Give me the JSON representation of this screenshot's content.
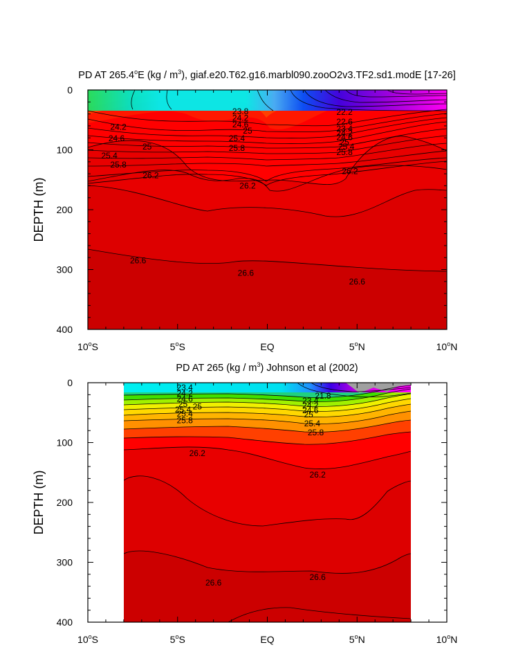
{
  "chart_data": [
    {
      "type": "heatmap",
      "title_prefix": "PD AT 265.4",
      "title_deg": "o",
      "title_mid": "E (kg / m",
      "title_sup": "3",
      "title_suffix": "), giaf.e20.T62.g16.marbl090.zooO2v3.TF2.sd1.modE [17-26]",
      "ylabel": "DEPTH (m)",
      "xlim": [
        -10,
        10
      ],
      "ylim": [
        0,
        400
      ],
      "x_ticks": [
        {
          "value": -10,
          "num": "10",
          "hemi": "S"
        },
        {
          "value": -5,
          "num": "5",
          "hemi": "S"
        },
        {
          "value": 0,
          "num": "EQ",
          "hemi": ""
        },
        {
          "value": 5,
          "num": "5",
          "hemi": "N"
        },
        {
          "value": 10,
          "num": "10",
          "hemi": "N"
        }
      ],
      "y_ticks": [
        "0",
        "100",
        "200",
        "300",
        "400"
      ],
      "contour_labels": [
        {
          "text": "24.2",
          "x": -8.3,
          "y": 62
        },
        {
          "text": "24.6",
          "x": -8.4,
          "y": 81
        },
        {
          "text": "25",
          "x": -6.7,
          "y": 95
        },
        {
          "text": "25.4",
          "x": -8.8,
          "y": 110
        },
        {
          "text": "25.8",
          "x": -8.3,
          "y": 125
        },
        {
          "text": "26.2",
          "x": -6.5,
          "y": 143
        },
        {
          "text": "23.8",
          "x": -1.5,
          "y": 36
        },
        {
          "text": "24.2",
          "x": -1.5,
          "y": 47
        },
        {
          "text": "24.6",
          "x": -1.5,
          "y": 58
        },
        {
          "text": "25",
          "x": -1.1,
          "y": 68
        },
        {
          "text": "25.4",
          "x": -1.7,
          "y": 81
        },
        {
          "text": "25.8",
          "x": -1.7,
          "y": 97
        },
        {
          "text": "26.2",
          "x": -1.1,
          "y": 160
        },
        {
          "text": "22.2",
          "x": 4.3,
          "y": 37
        },
        {
          "text": "22.6",
          "x": 4.3,
          "y": 53
        },
        {
          "text": "23.4",
          "x": 4.3,
          "y": 65
        },
        {
          "text": "24.2",
          "x": 4.3,
          "y": 72
        },
        {
          "text": "24.6",
          "x": 4.3,
          "y": 79
        },
        {
          "text": "25",
          "x": 4.3,
          "y": 87
        },
        {
          "text": "25.4",
          "x": 4.4,
          "y": 95
        },
        {
          "text": "25.8",
          "x": 4.3,
          "y": 104
        },
        {
          "text": "26.2",
          "x": 4.6,
          "y": 136
        },
        {
          "text": "26.6",
          "x": -7.2,
          "y": 285
        },
        {
          "text": "26.6",
          "x": -1.2,
          "y": 306
        },
        {
          "text": "26.6",
          "x": 5.0,
          "y": 320
        }
      ]
    },
    {
      "type": "heatmap",
      "title_prefix": "PD AT 265 (kg / m",
      "title_deg": "",
      "title_mid": "",
      "title_sup": "3",
      "title_suffix": ") Johnson et al (2002)",
      "ylabel": "DEPTH (m)",
      "xlim": [
        -10,
        10
      ],
      "ylim": [
        0,
        400
      ],
      "data_xlim": [
        -8,
        8
      ],
      "x_ticks": [
        {
          "value": -10,
          "num": "10",
          "hemi": "S"
        },
        {
          "value": -5,
          "num": "5",
          "hemi": "S"
        },
        {
          "value": 0,
          "num": "EQ",
          "hemi": ""
        },
        {
          "value": 5,
          "num": "5",
          "hemi": "N"
        },
        {
          "value": 10,
          "num": "10",
          "hemi": "N"
        }
      ],
      "y_ticks": [
        "0",
        "100",
        "200",
        "300",
        "400"
      ],
      "contour_labels": [
        {
          "text": "23.4",
          "x": -4.6,
          "y": 8
        },
        {
          "text": "24.2",
          "x": -4.6,
          "y": 18
        },
        {
          "text": "24.6",
          "x": -4.6,
          "y": 27
        },
        {
          "text": "25",
          "x": -4.7,
          "y": 36
        },
        {
          "text": "25.4",
          "x": -4.7,
          "y": 45
        },
        {
          "text": "25",
          "x": -3.9,
          "y": 40
        },
        {
          "text": "25.4",
          "x": -4.6,
          "y": 52
        },
        {
          "text": "25.8",
          "x": -4.6,
          "y": 63
        },
        {
          "text": "21.8",
          "x": 3.1,
          "y": 22
        },
        {
          "text": "23.4",
          "x": 2.4,
          "y": 30
        },
        {
          "text": "24.2",
          "x": 2.4,
          "y": 38
        },
        {
          "text": "24.6",
          "x": 2.4,
          "y": 46
        },
        {
          "text": "25",
          "x": 2.3,
          "y": 53
        },
        {
          "text": "25.4",
          "x": 2.5,
          "y": 68
        },
        {
          "text": "25.8",
          "x": 2.7,
          "y": 83
        },
        {
          "text": "26.2",
          "x": -3.9,
          "y": 118
        },
        {
          "text": "26.2",
          "x": 2.8,
          "y": 154
        },
        {
          "text": "26.6",
          "x": -3.0,
          "y": 334
        },
        {
          "text": "26.6",
          "x": 2.8,
          "y": 325
        }
      ]
    }
  ]
}
